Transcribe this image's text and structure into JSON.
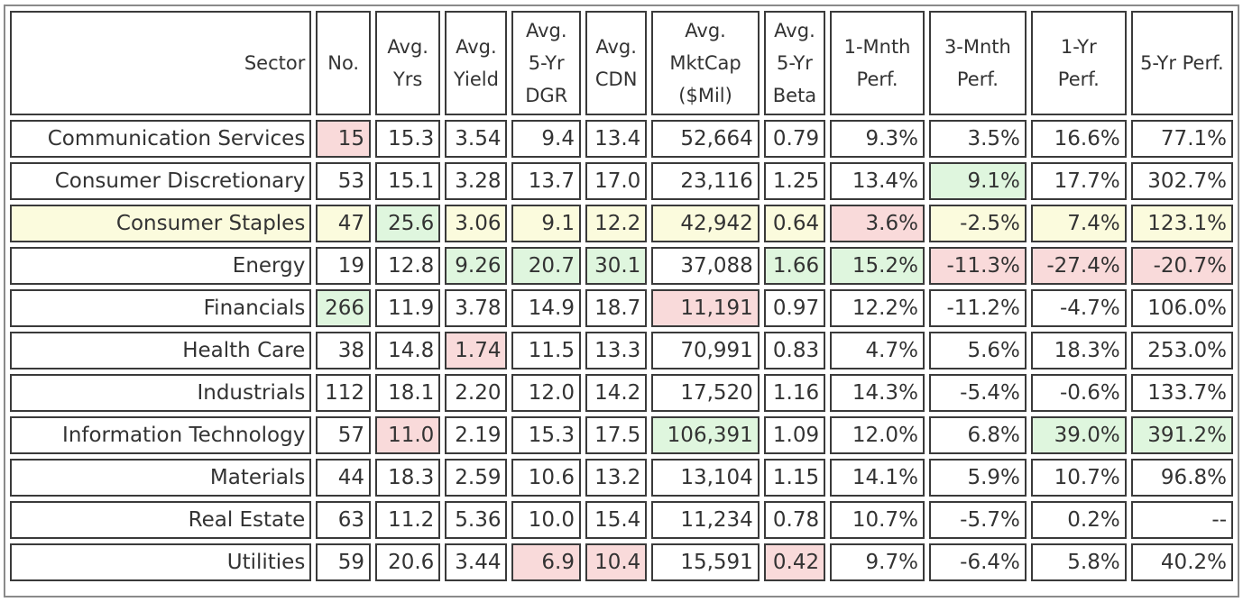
{
  "table": {
    "headers": [
      {
        "key": "sector",
        "label": "Sector"
      },
      {
        "key": "no",
        "label": "No."
      },
      {
        "key": "yrs",
        "label": "Avg. Yrs"
      },
      {
        "key": "yield",
        "label": "Avg. Yield"
      },
      {
        "key": "dgr",
        "label": "Avg. 5-Yr DGR"
      },
      {
        "key": "cdn",
        "label": "Avg. CDN"
      },
      {
        "key": "mktcap",
        "label": "Avg. MktCap ($Mil)"
      },
      {
        "key": "beta",
        "label": "Avg. 5-Yr Beta"
      },
      {
        "key": "p1m",
        "label": "1-Mnth Perf."
      },
      {
        "key": "p3m",
        "label": "3-Mnth Perf."
      },
      {
        "key": "p1y",
        "label": "1-Yr Perf."
      },
      {
        "key": "p5y",
        "label": "5-Yr Perf."
      }
    ],
    "highlight_colors": {
      "green": "#dff6de",
      "red": "#f9dada",
      "yellow": "#fbfbdd"
    },
    "rows": [
      {
        "row_highlight": "",
        "cells": [
          "Communication Services",
          "15",
          "15.3",
          "3.54",
          "9.4",
          "13.4",
          "52,664",
          "0.79",
          "9.3%",
          "3.5%",
          "16.6%",
          "77.1%"
        ],
        "highlights": [
          "",
          "red",
          "",
          "",
          "",
          "",
          "",
          "",
          "",
          "",
          "",
          ""
        ]
      },
      {
        "row_highlight": "",
        "cells": [
          "Consumer Discretionary",
          "53",
          "15.1",
          "3.28",
          "13.7",
          "17.0",
          "23,116",
          "1.25",
          "13.4%",
          "9.1%",
          "17.7%",
          "302.7%"
        ],
        "highlights": [
          "",
          "",
          "",
          "",
          "",
          "",
          "",
          "",
          "",
          "green",
          "",
          ""
        ]
      },
      {
        "row_highlight": "yellow",
        "cells": [
          "Consumer Staples",
          "47",
          "25.6",
          "3.06",
          "9.1",
          "12.2",
          "42,942",
          "0.64",
          "3.6%",
          "-2.5%",
          "7.4%",
          "123.1%"
        ],
        "highlights": [
          "",
          "",
          "green",
          "",
          "",
          "",
          "",
          "",
          "red",
          "",
          "",
          ""
        ]
      },
      {
        "row_highlight": "",
        "cells": [
          "Energy",
          "19",
          "12.8",
          "9.26",
          "20.7",
          "30.1",
          "37,088",
          "1.66",
          "15.2%",
          "-11.3%",
          "-27.4%",
          "-20.7%"
        ],
        "highlights": [
          "",
          "",
          "",
          "green",
          "green",
          "green",
          "",
          "green",
          "green",
          "red",
          "red",
          "red"
        ]
      },
      {
        "row_highlight": "",
        "cells": [
          "Financials",
          "266",
          "11.9",
          "3.78",
          "14.9",
          "18.7",
          "11,191",
          "0.97",
          "12.2%",
          "-11.2%",
          "-4.7%",
          "106.0%"
        ],
        "highlights": [
          "",
          "green",
          "",
          "",
          "",
          "",
          "red",
          "",
          "",
          "",
          "",
          ""
        ]
      },
      {
        "row_highlight": "",
        "cells": [
          "Health Care",
          "38",
          "14.8",
          "1.74",
          "11.5",
          "13.3",
          "70,991",
          "0.83",
          "4.7%",
          "5.6%",
          "18.3%",
          "253.0%"
        ],
        "highlights": [
          "",
          "",
          "",
          "red",
          "",
          "",
          "",
          "",
          "",
          "",
          "",
          ""
        ]
      },
      {
        "row_highlight": "",
        "cells": [
          "Industrials",
          "112",
          "18.1",
          "2.20",
          "12.0",
          "14.2",
          "17,520",
          "1.16",
          "14.3%",
          "-5.4%",
          "-0.6%",
          "133.7%"
        ],
        "highlights": [
          "",
          "",
          "",
          "",
          "",
          "",
          "",
          "",
          "",
          "",
          "",
          ""
        ]
      },
      {
        "row_highlight": "",
        "cells": [
          "Information Technology",
          "57",
          "11.0",
          "2.19",
          "15.3",
          "17.5",
          "106,391",
          "1.09",
          "12.0%",
          "6.8%",
          "39.0%",
          "391.2%"
        ],
        "highlights": [
          "",
          "",
          "red",
          "",
          "",
          "",
          "green",
          "",
          "",
          "",
          "green",
          "green"
        ]
      },
      {
        "row_highlight": "",
        "cells": [
          "Materials",
          "44",
          "18.3",
          "2.59",
          "10.6",
          "13.2",
          "13,104",
          "1.15",
          "14.1%",
          "5.9%",
          "10.7%",
          "96.8%"
        ],
        "highlights": [
          "",
          "",
          "",
          "",
          "",
          "",
          "",
          "",
          "",
          "",
          "",
          ""
        ]
      },
      {
        "row_highlight": "",
        "cells": [
          "Real Estate",
          "63",
          "11.2",
          "5.36",
          "10.0",
          "15.4",
          "11,234",
          "0.78",
          "10.7%",
          "-5.7%",
          "0.2%",
          "--"
        ],
        "highlights": [
          "",
          "",
          "",
          "",
          "",
          "",
          "",
          "",
          "",
          "",
          "",
          ""
        ]
      },
      {
        "row_highlight": "",
        "cells": [
          "Utilities",
          "59",
          "20.6",
          "3.44",
          "6.9",
          "10.4",
          "15,591",
          "0.42",
          "9.7%",
          "-6.4%",
          "5.8%",
          "40.2%"
        ],
        "highlights": [
          "",
          "",
          "",
          "",
          "red",
          "red",
          "",
          "red",
          "",
          "",
          "",
          ""
        ]
      }
    ]
  }
}
